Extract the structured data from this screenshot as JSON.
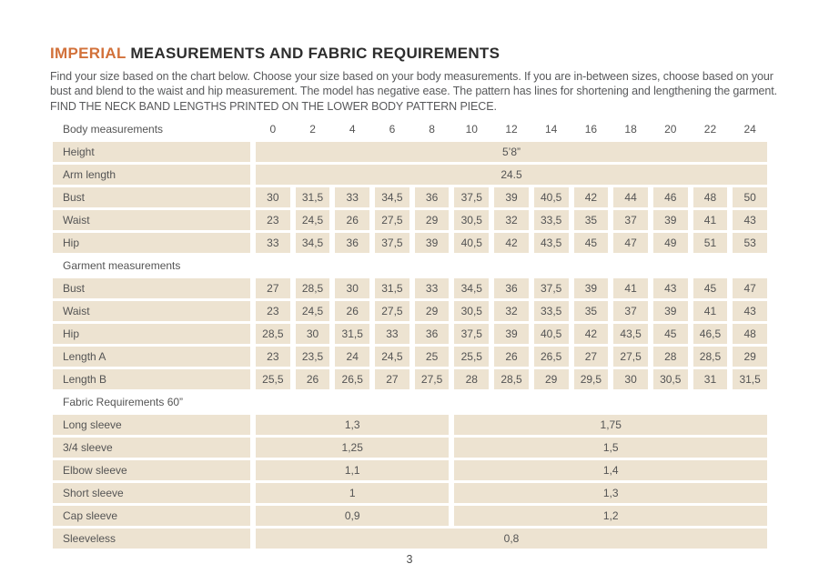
{
  "page": {
    "title_highlight": "IMPERIAL",
    "title_rest": " MEASUREMENTS AND FABRIC REQUIREMENTS",
    "intro": "Find your size based on the chart below. Choose your size based on your body measurements. If you are in-between sizes, choose based on your bust and blend to the waist and hip measurement. The model has negative ease. The pattern has lines for shortening and lengthening the garment. FIND THE NECK BAND LENGTHS PRINTED ON THE LOWER BODY PATTERN PIECE.",
    "page_number": "3"
  },
  "colors": {
    "accent_orange": "#d2713a",
    "row_beige": "#ede3d1",
    "title_dark": "#2d2d2d",
    "text_gray": "#58595b"
  },
  "table": {
    "rows": [
      {
        "type": "header",
        "label": "Body measurements",
        "cells": [
          "0",
          "2",
          "4",
          "6",
          "8",
          "10",
          "12",
          "14",
          "16",
          "18",
          "20",
          "22",
          "24"
        ]
      },
      {
        "type": "span",
        "label": "Height",
        "value": "5’8”"
      },
      {
        "type": "span",
        "label": "Arm length",
        "value": "24.5"
      },
      {
        "type": "cells",
        "label": "Bust",
        "cells": [
          "30",
          "31,5",
          "33",
          "34,5",
          "36",
          "37,5",
          "39",
          "40,5",
          "42",
          "44",
          "46",
          "48",
          "50"
        ]
      },
      {
        "type": "cells",
        "label": "Waist",
        "cells": [
          "23",
          "24,5",
          "26",
          "27,5",
          "29",
          "30,5",
          "32",
          "33,5",
          "35",
          "37",
          "39",
          "41",
          "43"
        ]
      },
      {
        "type": "cells",
        "label": "Hip",
        "cells": [
          "33",
          "34,5",
          "36",
          "37,5",
          "39",
          "40,5",
          "42",
          "43,5",
          "45",
          "47",
          "49",
          "51",
          "53"
        ]
      },
      {
        "type": "section",
        "label": "Garment measurements"
      },
      {
        "type": "cells",
        "label": "Bust",
        "cells": [
          "27",
          "28,5",
          "30",
          "31,5",
          "33",
          "34,5",
          "36",
          "37,5",
          "39",
          "41",
          "43",
          "45",
          "47"
        ]
      },
      {
        "type": "cells",
        "label": "Waist",
        "cells": [
          "23",
          "24,5",
          "26",
          "27,5",
          "29",
          "30,5",
          "32",
          "33,5",
          "35",
          "37",
          "39",
          "41",
          "43"
        ]
      },
      {
        "type": "cells",
        "label": "Hip",
        "cells": [
          "28,5",
          "30",
          "31,5",
          "33",
          "36",
          "37,5",
          "39",
          "40,5",
          "42",
          "43,5",
          "45",
          "46,5",
          "48"
        ]
      },
      {
        "type": "cells",
        "label": "Length A",
        "cells": [
          "23",
          "23,5",
          "24",
          "24,5",
          "25",
          "25,5",
          "26",
          "26,5",
          "27",
          "27,5",
          "28",
          "28,5",
          "29"
        ]
      },
      {
        "type": "cells",
        "label": "Length B",
        "cells": [
          "25,5",
          "26",
          "26,5",
          "27",
          "27,5",
          "28",
          "28,5",
          "29",
          "29,5",
          "30",
          "30,5",
          "31",
          "31,5"
        ]
      },
      {
        "type": "section",
        "label": "Fabric Requirements  60”"
      },
      {
        "type": "split",
        "label": "Long sleeve",
        "left": "1,3",
        "right": "1,75"
      },
      {
        "type": "split",
        "label": "3/4 sleeve",
        "left": "1,25",
        "right": "1,5"
      },
      {
        "type": "split",
        "label": "Elbow sleeve",
        "left": "1,1",
        "right": "1,4"
      },
      {
        "type": "split",
        "label": "Short sleeve",
        "left": "1",
        "right": "1,3"
      },
      {
        "type": "split",
        "label": "Cap sleeve",
        "left": "0,9",
        "right": "1,2"
      },
      {
        "type": "span",
        "label": "Sleeveless",
        "value": "0,8"
      }
    ]
  }
}
